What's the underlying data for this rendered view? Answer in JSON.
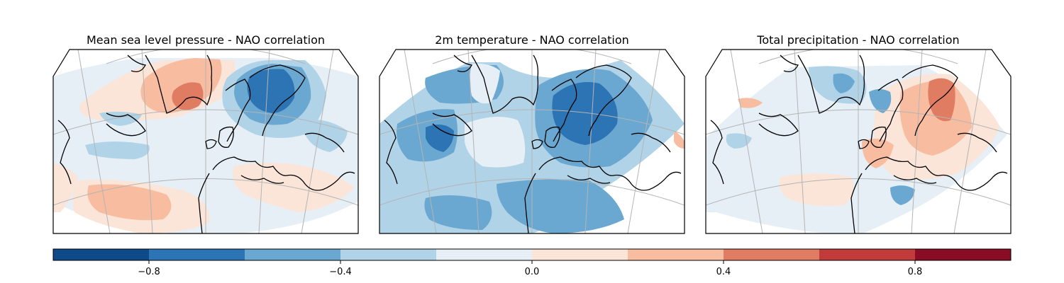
{
  "figure": {
    "panels": [
      {
        "title": "Mean sea level pressure - NAO correlation"
      },
      {
        "title": "2m temperature - NAO correlation"
      },
      {
        "title": "Total precipitation - NAO correlation"
      }
    ]
  },
  "colorbar": {
    "boundaries": [
      -1.0,
      -0.8,
      -0.6,
      -0.4,
      -0.2,
      0.0,
      0.2,
      0.4,
      0.6,
      0.8,
      1.0
    ],
    "colors": [
      "#0d4a87",
      "#2c74b3",
      "#6aa8d1",
      "#b1d3e7",
      "#e6eff6",
      "#fbe5d8",
      "#f8bda0",
      "#e07c62",
      "#c23b3b",
      "#8a0c25"
    ],
    "tick_values": [
      -0.8,
      -0.4,
      0.0,
      0.4,
      0.8
    ],
    "tick_labels": [
      "−0.8",
      "−0.4",
      "0.0",
      "0.4",
      "0.8"
    ]
  },
  "map_colors": {
    "coastline": "#000000",
    "gridline": "#b4b4b4"
  }
}
